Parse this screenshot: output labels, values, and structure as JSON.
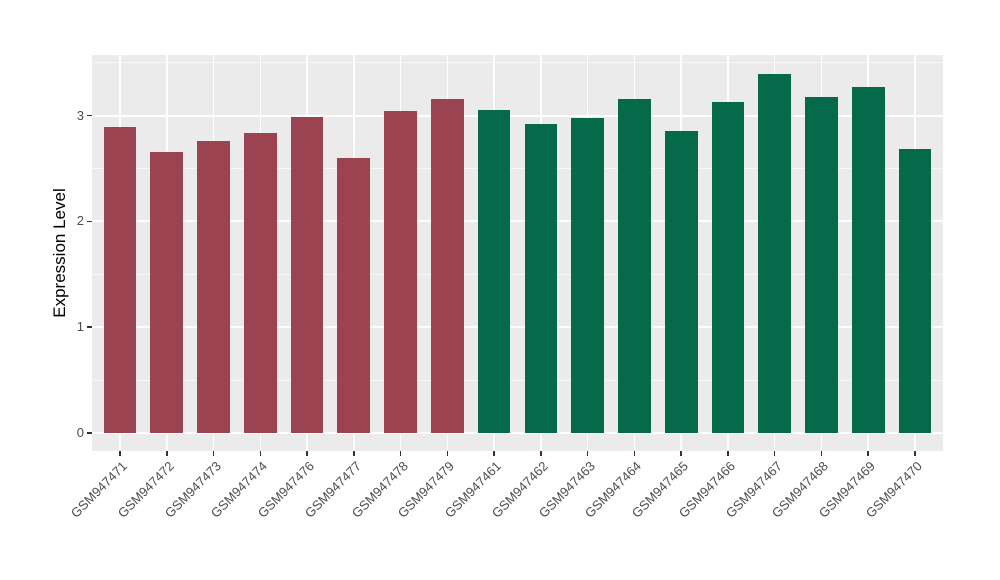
{
  "chart_data": {
    "type": "bar",
    "title": "",
    "xlabel": "",
    "ylabel": "Expression Level",
    "categories": [
      "GSM947471",
      "GSM947472",
      "GSM947473",
      "GSM947474",
      "GSM947476",
      "GSM947477",
      "GSM947478",
      "GSM947479",
      "GSM947461",
      "GSM947462",
      "GSM947463",
      "GSM947464",
      "GSM947465",
      "GSM947466",
      "GSM947467",
      "GSM947468",
      "GSM947469",
      "GSM947470"
    ],
    "values": [
      2.89,
      2.66,
      2.76,
      2.84,
      2.99,
      2.6,
      3.04,
      3.16,
      3.05,
      2.92,
      2.98,
      3.16,
      2.85,
      3.13,
      3.39,
      3.18,
      3.27,
      2.68
    ],
    "bar_groups": [
      "red",
      "red",
      "red",
      "red",
      "red",
      "red",
      "red",
      "red",
      "green",
      "green",
      "green",
      "green",
      "green",
      "green",
      "green",
      "green",
      "green",
      "green"
    ],
    "group_colors": {
      "red": "#9C4351",
      "green": "#046A49"
    },
    "ytick_labels": [
      "0",
      "1",
      "2",
      "3"
    ],
    "ytick_values": [
      0,
      1,
      2,
      3
    ],
    "minor_tick_values": [
      0.5,
      1.5,
      2.5,
      3.5
    ],
    "ylim": [
      -0.17,
      3.57
    ],
    "grid": true,
    "legend_position": "none",
    "colors": {
      "figure_bg": "#FFFFFF",
      "panel_bg": "#EBEBEB",
      "grid": "#FFFFFF",
      "axis_text": "#4D4D4D",
      "axis_title": "#000000",
      "tick_mark": "#333333"
    }
  }
}
